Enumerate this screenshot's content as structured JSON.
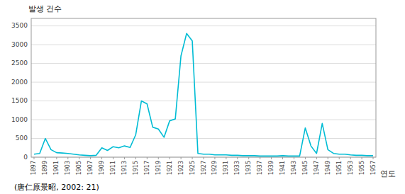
{
  "chart_data": {
    "type": "line",
    "xlabel": "연도",
    "ylabel": "발생 건수",
    "caption": "(唐仁原景昭, 2002: 21)",
    "x": [
      1897,
      1898,
      1899,
      1900,
      1901,
      1902,
      1903,
      1904,
      1905,
      1906,
      1907,
      1908,
      1909,
      1910,
      1911,
      1912,
      1913,
      1914,
      1915,
      1916,
      1917,
      1918,
      1919,
      1920,
      1921,
      1922,
      1923,
      1924,
      1925,
      1926,
      1927,
      1928,
      1929,
      1930,
      1931,
      1932,
      1933,
      1934,
      1935,
      1936,
      1937,
      1938,
      1939,
      1940,
      1941,
      1942,
      1943,
      1944,
      1945,
      1946,
      1947,
      1948,
      1949,
      1950,
      1951,
      1952,
      1953,
      1954,
      1955,
      1956,
      1957
    ],
    "values": [
      80,
      100,
      500,
      200,
      120,
      110,
      100,
      80,
      60,
      50,
      40,
      50,
      250,
      180,
      280,
      250,
      300,
      260,
      600,
      1500,
      1420,
      800,
      750,
      530,
      970,
      1020,
      2700,
      3300,
      3100,
      100,
      80,
      80,
      60,
      60,
      60,
      50,
      50,
      40,
      40,
      40,
      30,
      30,
      30,
      30,
      40,
      30,
      30,
      30,
      780,
      300,
      100,
      900,
      200,
      100,
      80,
      80,
      60,
      50,
      50,
      40,
      40
    ],
    "color": "#00BCD4",
    "xlim": [
      1896.5,
      1957.5
    ],
    "xticks": [
      1897,
      1899,
      1901,
      1903,
      1905,
      1907,
      1909,
      1911,
      1913,
      1915,
      1917,
      1919,
      1921,
      1923,
      1925,
      1927,
      1929,
      1931,
      1933,
      1935,
      1937,
      1939,
      1941,
      1943,
      1945,
      1947,
      1949,
      1951,
      1953,
      1955,
      1957
    ],
    "ylim": [
      0,
      3700
    ],
    "yticks": [
      0,
      500,
      1000,
      1500,
      2000,
      2500,
      3000,
      3500
    ],
    "grid": true
  }
}
